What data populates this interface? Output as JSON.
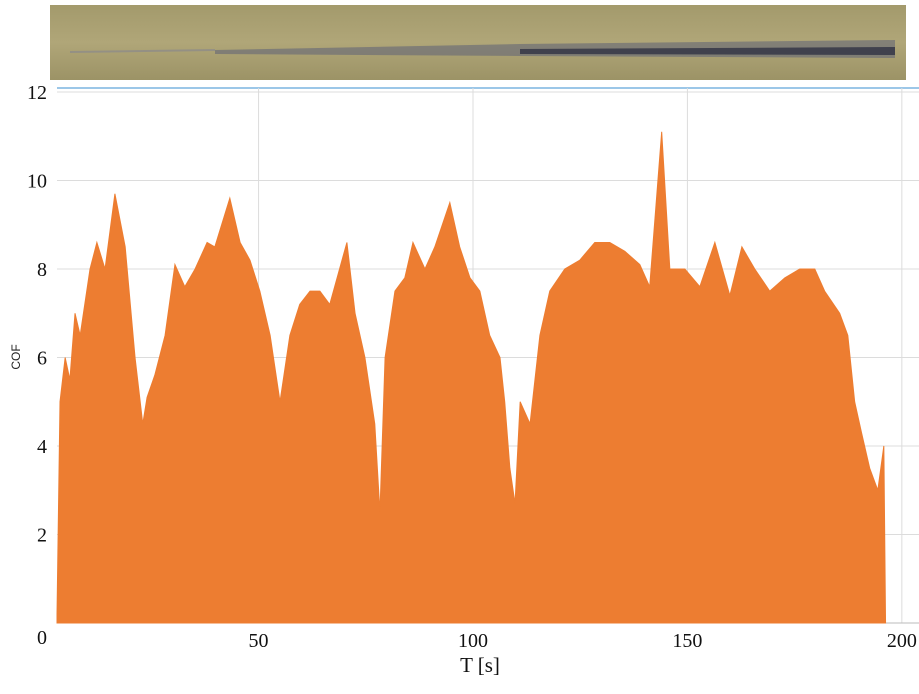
{
  "chart_data": {
    "type": "area",
    "xlabel": "T [s]",
    "ylabel": "COF",
    "color": "#ed7d31",
    "grid": true,
    "xlim": [
      3,
      204
    ],
    "ylim": [
      0,
      12
    ],
    "xticks": [
      50,
      100,
      150,
      200
    ],
    "yticks": [
      0,
      2,
      4,
      6,
      8,
      10,
      12
    ],
    "x": [
      3.0,
      3.7,
      4.9,
      6.0,
      7.2,
      8.4,
      10.7,
      12.3,
      14.2,
      16.5,
      18.9,
      21.2,
      23.0,
      24.0,
      25.8,
      28.2,
      30.5,
      32.8,
      35.2,
      38.0,
      39.8,
      43.3,
      45.7,
      48.0,
      50.3,
      52.7,
      55.0,
      57.3,
      59.6,
      62.0,
      64.3,
      66.6,
      70.6,
      72.5,
      74.8,
      77.1,
      78.3,
      79.5,
      81.8,
      84.1,
      86.0,
      88.8,
      91.1,
      94.6,
      96.9,
      99.3,
      101.6,
      103.9,
      106.3,
      107.4,
      108.6,
      109.8,
      111.0,
      113.3,
      115.6,
      117.9,
      121.4,
      124.9,
      128.4,
      131.9,
      135.4,
      138.9,
      141.2,
      144.0,
      145.9,
      149.4,
      152.9,
      156.4,
      159.9,
      162.7,
      165.7,
      169.2,
      172.7,
      176.2,
      179.7,
      182.0,
      185.5,
      187.4,
      189.0,
      190.6,
      192.5,
      194.4,
      195.8,
      196.2
    ],
    "values": [
      0.2,
      5,
      6,
      5.5,
      7,
      6.5,
      8,
      8.6,
      8,
      9.7,
      8.5,
      6,
      4.5,
      5.1,
      5.6,
      6.5,
      8.1,
      7.6,
      8,
      8.6,
      8.5,
      9.6,
      8.6,
      8.2,
      7.5,
      6.5,
      5,
      6.5,
      7.2,
      7.5,
      7.5,
      7.2,
      8.6,
      7,
      6,
      4.5,
      2.5,
      6,
      7.5,
      7.8,
      8.6,
      8,
      8.5,
      9.5,
      8.5,
      7.8,
      7.5,
      6.5,
      6,
      5,
      3.5,
      2.7,
      5,
      4.5,
      6.5,
      7.5,
      8,
      8.2,
      8.6,
      8.6,
      8.4,
      8.1,
      7.6,
      11.1,
      8,
      8,
      7.6,
      8.6,
      7.4,
      8.5,
      8,
      7.5,
      7.8,
      8,
      8,
      7.5,
      7,
      6.5,
      5,
      4.3,
      3.5,
      3,
      4,
      0
    ]
  }
}
